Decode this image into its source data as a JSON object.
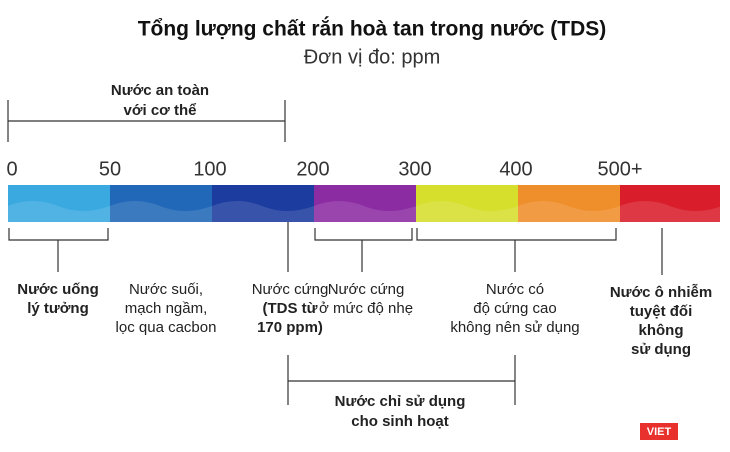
{
  "title": "Tổng lượng chất rắn hoà tan trong nước (TDS)",
  "subtitle": "Đơn vị đo: ppm",
  "safe_label": {
    "lines": [
      "Nước an toàn",
      "với cơ thể"
    ]
  },
  "scale": [
    {
      "label": "0",
      "color": "#3aa9e0"
    },
    {
      "label": "50",
      "color": "#2268b8"
    },
    {
      "label": "100",
      "color": "#1d3c9f"
    },
    {
      "label": "200",
      "color": "#8b2ca2"
    },
    {
      "label": "300",
      "color": "#d6df2c"
    },
    {
      "label": "400",
      "color": "#ef8f2b"
    },
    {
      "label": "500+",
      "color": "#d91d2b"
    }
  ],
  "descriptions": [
    {
      "lines": [
        "Nước uống",
        "lý tưởng"
      ],
      "bold": [
        true,
        true
      ]
    },
    {
      "lines": [
        "Nước suối,",
        "mạch ngầm,",
        "lọc qua cacbon"
      ],
      "bold": [
        false,
        false,
        false
      ]
    },
    {
      "lines": [
        "Nước cứng",
        "(TDS từ",
        "170 ppm)"
      ],
      "bold": [
        false,
        true,
        true
      ]
    },
    {
      "lines": [
        "Nước cứng",
        "ở mức độ nhẹ"
      ],
      "bold": [
        false,
        false
      ]
    },
    {
      "lines": [
        "Nước có",
        "độ cứng cao",
        "không nên sử dụng"
      ],
      "bold": [
        false,
        false,
        false
      ]
    },
    {
      "lines": [
        "Nước ô nhiễm",
        "tuyệt đối",
        "không",
        "sử dụng"
      ],
      "bold": [
        true,
        true,
        true,
        true
      ]
    }
  ],
  "household_label": {
    "lines": [
      "Nước chỉ sử dụng",
      "cho sinh hoạt"
    ]
  },
  "logo": "VIET"
}
